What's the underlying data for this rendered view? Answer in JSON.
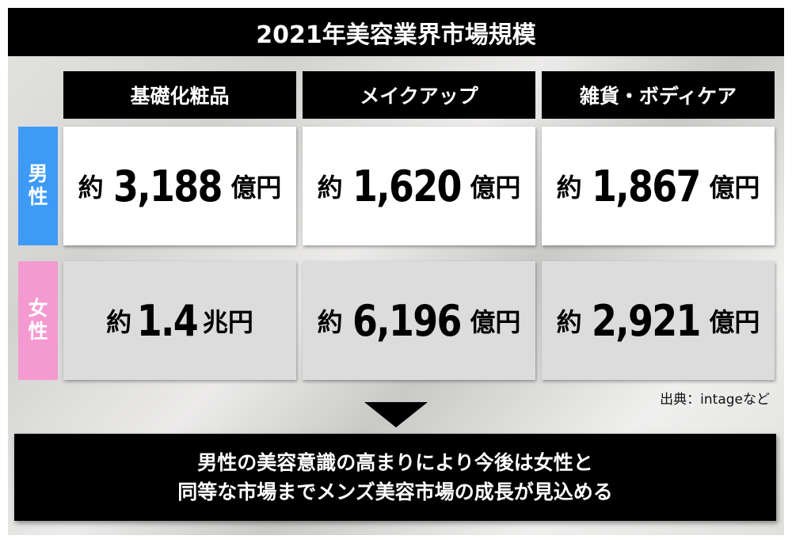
{
  "title": "2021年美容業界市場規模",
  "columns": [
    "基礎化粧品",
    "メイクアップ",
    "雑貨・ボディケア"
  ],
  "rows": [
    {
      "label": [
        "男",
        "性"
      ],
      "color": "#3d9bf7",
      "cells": [
        {
          "prefix": "約",
          "value": "3,188",
          "unit": "億円"
        },
        {
          "prefix": "約",
          "value": "1,620",
          "unit": "億円"
        },
        {
          "prefix": "約",
          "value": "1,867",
          "unit": "億円"
        }
      ]
    },
    {
      "label": [
        "女",
        "性"
      ],
      "color": "#f59ad0",
      "cells": [
        {
          "prefix": "約",
          "value": "1.4",
          "unit": "兆円"
        },
        {
          "prefix": "約",
          "value": "6,196",
          "unit": "億円"
        },
        {
          "prefix": "約",
          "value": "2,921",
          "unit": "億円"
        }
      ]
    }
  ],
  "source": "出典：intageなど",
  "conclusion": [
    "男性の美容意識の高まりにより今後は女性と",
    "同等な市場までメンズ美容市場の成長が見込める"
  ]
}
